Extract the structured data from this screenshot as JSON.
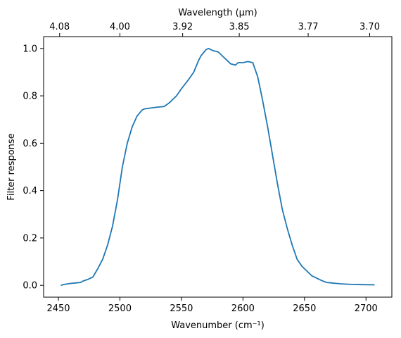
{
  "chart_data": {
    "type": "line",
    "xlabel": "Wavenumber (cm⁻¹)",
    "ylabel": "Filter response",
    "top_xlabel": "Wavelength (μm)",
    "xlim": [
      2438,
      2721
    ],
    "ylim": [
      -0.05,
      1.05
    ],
    "x_ticks": [
      2450,
      2500,
      2550,
      2600,
      2650,
      2700
    ],
    "x_tick_labels": [
      "2450",
      "2500",
      "2550",
      "2600",
      "2650",
      "2700"
    ],
    "y_ticks": [
      0.0,
      0.2,
      0.4,
      0.6,
      0.8,
      1.0
    ],
    "y_tick_labels": [
      "0.0",
      "0.2",
      "0.4",
      "0.6",
      "0.8",
      "1.0"
    ],
    "top_ticks_wavenumber": [
      2451,
      2500,
      2551,
      2597,
      2653,
      2703
    ],
    "top_tick_labels": [
      "4.08",
      "4.00",
      "3.92",
      "3.85",
      "3.77",
      "3.70"
    ],
    "grid": false,
    "series": [
      {
        "color": "#1f77b4",
        "x": [
          2452,
          2456,
          2460,
          2464,
          2468,
          2470,
          2474,
          2478,
          2482,
          2486,
          2490,
          2494,
          2498,
          2502,
          2506,
          2510,
          2514,
          2518,
          2520,
          2524,
          2530,
          2536,
          2540,
          2546,
          2550,
          2556,
          2560,
          2564,
          2566,
          2570,
          2572,
          2576,
          2580,
          2584,
          2588,
          2590,
          2594,
          2596,
          2600,
          2604,
          2608,
          2612,
          2616,
          2620,
          2624,
          2628,
          2632,
          2636,
          2640,
          2644,
          2648,
          2652,
          2656,
          2660,
          2664,
          2668,
          2672,
          2676,
          2680,
          2688,
          2696,
          2707
        ],
        "y": [
          0.0,
          0.005,
          0.008,
          0.01,
          0.012,
          0.018,
          0.025,
          0.035,
          0.07,
          0.11,
          0.17,
          0.25,
          0.36,
          0.5,
          0.6,
          0.67,
          0.715,
          0.74,
          0.745,
          0.748,
          0.752,
          0.755,
          0.77,
          0.8,
          0.83,
          0.87,
          0.9,
          0.95,
          0.97,
          0.995,
          1.0,
          0.99,
          0.985,
          0.965,
          0.945,
          0.935,
          0.93,
          0.94,
          0.94,
          0.945,
          0.94,
          0.88,
          0.78,
          0.67,
          0.55,
          0.43,
          0.32,
          0.24,
          0.17,
          0.11,
          0.08,
          0.06,
          0.04,
          0.03,
          0.02,
          0.012,
          0.01,
          0.008,
          0.006,
          0.004,
          0.003,
          0.002
        ]
      }
    ]
  }
}
